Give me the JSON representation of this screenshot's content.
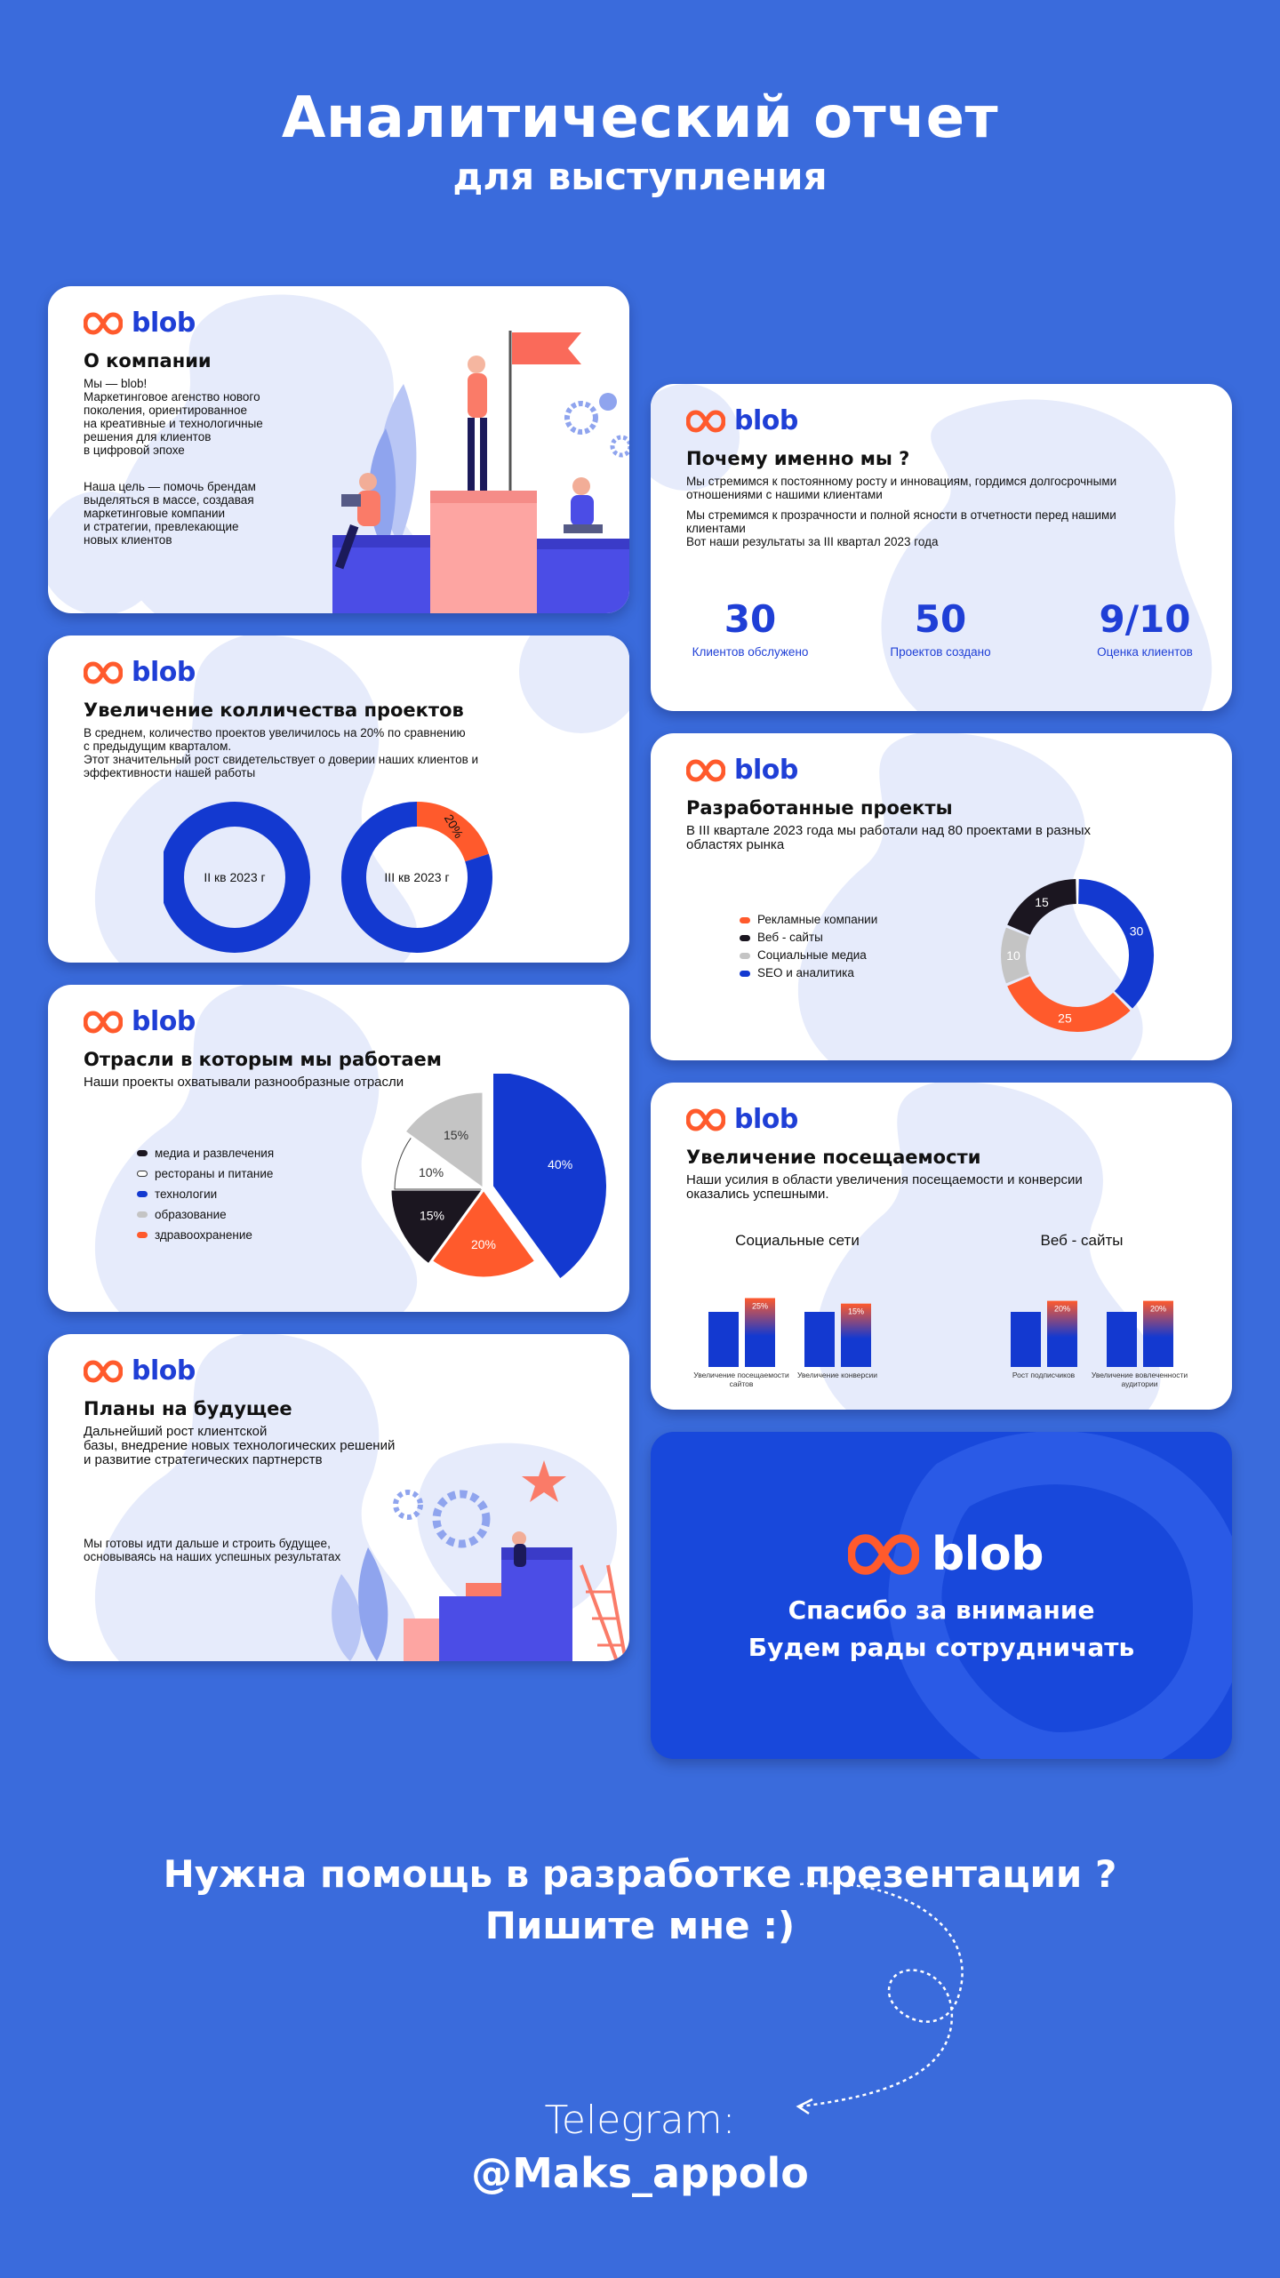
{
  "header": {
    "title": "Аналитический отчет",
    "subtitle": "для выступления"
  },
  "brand": {
    "name": "blob",
    "primary": "#1f3fd6",
    "accent": "#ff5a2c",
    "background": "#3a6bdc"
  },
  "about": {
    "title": "О компании",
    "text1": [
      "Мы — blob!",
      "Маркетинговое агенство нового",
      "поколения, ориентированное",
      "на креативные и технологичные",
      "решения для клиентов",
      "в цифровой эпохе"
    ],
    "text2": [
      "Наша цель — помочь брендам",
      "выделяться в массе, создавая",
      "маркетинговые компании",
      "и стратегии, превлекающие",
      "новых клиентов"
    ]
  },
  "why": {
    "title": "Почему именно мы ?",
    "text1": [
      "Мы стремимся к постоянному росту и инновациям, гордимся долгосрочными",
      "отношениями с нашими клиентами"
    ],
    "text2": [
      "Мы стремимся к прозрачности и полной ясности в отчетности перед нашими",
      "клиентами",
      "Вот наши результаты за III квартал 2023 года"
    ],
    "stats": [
      {
        "value": "30",
        "label": "Клиентов обслужено"
      },
      {
        "value": "50",
        "label": "Проектов создано"
      },
      {
        "value": "9/10",
        "label": "Оценка клиентов"
      }
    ]
  },
  "growth": {
    "title": "Увеличение колличества проектов",
    "text": [
      "В среднем, количество проектов увеличилось на 20% по сравнению",
      "с предыдущим кварталом.",
      "Этот значительный рост свидетельствует о доверии наших клиентов и",
      "эффективности нашей работы"
    ]
  },
  "developed": {
    "title": "Разработанные проекты",
    "text": [
      "В III квартале 2023 года мы работали над 80 проектами в разных",
      "областях рынка"
    ]
  },
  "industries": {
    "title": "Отрасли в которым мы работаем",
    "text": "Наши проекты охватывали разнообразные отрасли"
  },
  "traffic": {
    "title": "Увеличение посещаемости",
    "text": [
      "Наши усилия в области увеличения посещаемости и конверсии",
      "оказались успешными."
    ]
  },
  "plans": {
    "title": "Планы на будущее",
    "text1": [
      "Дальнейший рост клиентской",
      "базы, внедрение новых технологических решений",
      "и развитие стратегических партнерств"
    ],
    "text2": [
      "Мы готовы идти дальше и строить будущее,",
      "основываясь на наших успешных результатах"
    ]
  },
  "thanks": {
    "line1": "Спасибо за внимание",
    "line2": "Будем рады сотрудничать"
  },
  "cta": {
    "line1": "Нужна помощь в разработке презентации ?",
    "line2": "Пишите мне :)",
    "telegram_label": "Telegram:",
    "telegram_handle": "@Maks_appolo"
  },
  "chart_data": [
    {
      "type": "pie",
      "title": "",
      "categories": [
        "II кв 2023 г"
      ],
      "values": [
        100
      ],
      "colors": [
        "#1339d0"
      ]
    },
    {
      "type": "pie",
      "title": "",
      "categories": [
        "III кв 2023 г"
      ],
      "slices": [
        {
          "label": "",
          "value": 80,
          "color": "#1339d0"
        },
        {
          "label": "20%",
          "value": 20,
          "color": "#ff5a2c"
        }
      ]
    },
    {
      "type": "pie",
      "title": "",
      "legend": "left",
      "slices": [
        {
          "label": "Рекламные компании",
          "value": 25,
          "color": "#ff5a2c"
        },
        {
          "label": "Веб - сайты",
          "value": 15,
          "color": "#1b1620"
        },
        {
          "label": "Социальные медиа",
          "value": 10,
          "color": "#c4c4c4"
        },
        {
          "label": "SEO и аналитика",
          "value": 30,
          "color": "#1339d0"
        }
      ]
    },
    {
      "type": "pie",
      "title": "",
      "legend": "left",
      "slices": [
        {
          "label": "медиа и развлечения",
          "value": 15,
          "display": "15%",
          "color": "#1b1620"
        },
        {
          "label": "рестораны и питание",
          "value": 10,
          "display": "10%",
          "color": "#ffffff"
        },
        {
          "label": "технологии",
          "value": 40,
          "display": "40%",
          "color": "#1339d0"
        },
        {
          "label": "образование",
          "value": 15,
          "display": "15%",
          "color": "#c4c4c4"
        },
        {
          "label": "здравоохранение",
          "value": 20,
          "display": "20%",
          "color": "#ff5a2c"
        }
      ]
    },
    {
      "type": "bar",
      "title": "Социальные сети",
      "categories": [
        "Увеличение посещаемости сайтов",
        "Увеличение конверсии"
      ],
      "series": [
        {
          "values": [
            100,
            100
          ]
        },
        {
          "values": [
            125,
            115
          ],
          "labels": [
            "25%",
            "15%"
          ]
        }
      ]
    },
    {
      "type": "bar",
      "title": "Веб - сайты",
      "categories": [
        "Рост подписчиков",
        "Увеличение вовлеченности аудитории"
      ],
      "series": [
        {
          "values": [
            100,
            100
          ]
        },
        {
          "values": [
            120,
            120
          ],
          "labels": [
            "20%",
            "20%"
          ]
        }
      ]
    }
  ]
}
